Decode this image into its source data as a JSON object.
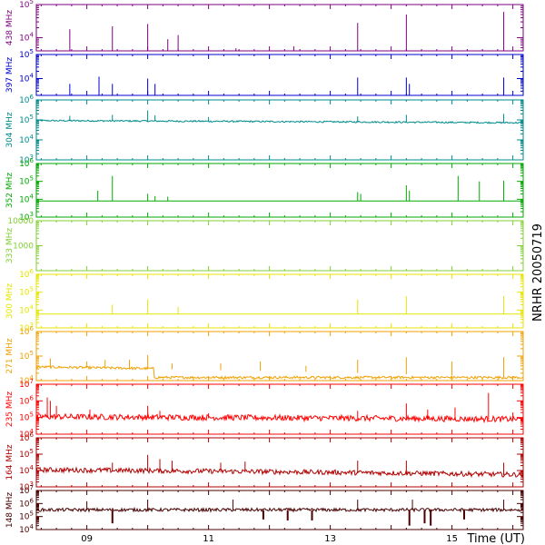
{
  "chart_data": {
    "type": "line",
    "side_label": "NRHR 20050719",
    "xlabel": "Time (UT)",
    "x_range": [
      8.17,
      16.17
    ],
    "x_ticks": [
      {
        "value": 9,
        "label": "09"
      },
      {
        "value": 11,
        "label": "11"
      },
      {
        "value": 13,
        "label": "13"
      },
      {
        "value": 15,
        "label": "15"
      }
    ],
    "panels": [
      {
        "name": "438 MHz",
        "color": "#7f007f",
        "ylim": [
          4000,
          100000
        ],
        "y_ticks": [
          {
            "value": 100000,
            "label": "10^5"
          },
          {
            "value": 10000,
            "label": "10^4"
          }
        ],
        "baseline": 4000,
        "noise": 0.0,
        "style": "flat",
        "spikes": [
          [
            8.72,
            18000
          ],
          [
            9.42,
            22000
          ],
          [
            10.0,
            26000
          ],
          [
            10.33,
            9000
          ],
          [
            10.5,
            12000
          ],
          [
            11.45,
            4800
          ],
          [
            12.4,
            5500
          ],
          [
            13.45,
            28000
          ],
          [
            14.25,
            50000
          ],
          [
            15.85,
            60000
          ]
        ]
      },
      {
        "name": "397 MHz",
        "color": "#0000cc",
        "ylim": [
          2000,
          100000
        ],
        "y_ticks": [
          {
            "value": 100000,
            "label": "10^5"
          },
          {
            "value": 10000,
            "label": "10^4"
          }
        ],
        "baseline": 2000,
        "noise": 0.0,
        "style": "flat",
        "spikes": [
          [
            8.72,
            6000
          ],
          [
            9.2,
            12000
          ],
          [
            9.42,
            6000
          ],
          [
            10.0,
            10000
          ],
          [
            10.12,
            6000
          ],
          [
            13.45,
            11000
          ],
          [
            14.25,
            11000
          ],
          [
            14.3,
            6000
          ],
          [
            15.85,
            11000
          ]
        ]
      },
      {
        "name": "304 MHz",
        "color": "#008b8b",
        "ylim": [
          1000,
          1000000
        ],
        "y_ticks": [
          {
            "value": 1000000,
            "label": "10^6"
          },
          {
            "value": 100000,
            "label": "10^5"
          },
          {
            "value": 10000,
            "label": "10^4"
          },
          {
            "value": 1000,
            "label": "10^3"
          }
        ],
        "baseline": 90000,
        "baseline_end": 70000,
        "noise": 0.08,
        "style": "noisy",
        "spikes": [
          [
            8.72,
            160000
          ],
          [
            9.42,
            180000
          ],
          [
            10.0,
            300000
          ],
          [
            10.12,
            170000
          ],
          [
            11.0,
            140000
          ],
          [
            13.45,
            150000
          ],
          [
            14.25,
            180000
          ],
          [
            15.85,
            200000
          ]
        ]
      },
      {
        "name": "352 MHz",
        "color": "#00aa00",
        "ylim": [
          1000,
          1000000
        ],
        "y_ticks": [
          {
            "value": 1000000,
            "label": "10^6"
          },
          {
            "value": 100000,
            "label": "10^5"
          },
          {
            "value": 10000,
            "label": "10^4"
          },
          {
            "value": 1000,
            "label": "10^3"
          }
        ],
        "baseline": 8000,
        "noise": 0.0,
        "style": "flat",
        "spikes": [
          [
            9.18,
            30000
          ],
          [
            9.42,
            200000
          ],
          [
            10.0,
            20000
          ],
          [
            10.12,
            15000
          ],
          [
            10.33,
            14000
          ],
          [
            13.45,
            25000
          ],
          [
            13.5,
            20000
          ],
          [
            14.25,
            60000
          ],
          [
            14.3,
            30000
          ],
          [
            15.1,
            200000
          ],
          [
            15.45,
            100000
          ],
          [
            15.85,
            110000
          ]
        ]
      },
      {
        "name": "333 MHz",
        "color": "#80d030",
        "ylim": [
          100,
          10000
        ],
        "y_ticks": [
          {
            "value": 10000,
            "label": "10000"
          },
          {
            "value": 1000,
            "label": "1000"
          }
        ],
        "baseline": 100,
        "noise": 0.0,
        "style": "flat",
        "spikes": []
      },
      {
        "name": "300 MHz",
        "color": "#e6e600",
        "ylim": [
          1000,
          1000000
        ],
        "y_ticks": [
          {
            "value": 1000000,
            "label": "10^6"
          },
          {
            "value": 100000,
            "label": "10^5"
          },
          {
            "value": 10000,
            "label": "10^4"
          },
          {
            "value": 1000,
            "label": "10^3"
          }
        ],
        "baseline": 6000,
        "noise": 0.0,
        "style": "flat",
        "spikes": [
          [
            9.42,
            20000
          ],
          [
            10.0,
            40000
          ],
          [
            10.5,
            15000
          ],
          [
            13.45,
            40000
          ],
          [
            14.25,
            60000
          ],
          [
            15.85,
            60000
          ]
        ]
      },
      {
        "name": "271 MHz",
        "color": "#f0a000",
        "ylim": [
          10000,
          1000000
        ],
        "y_ticks": [
          {
            "value": 1000000,
            "label": "10^6"
          },
          {
            "value": 100000,
            "label": "10^5"
          },
          {
            "value": 10000,
            "label": "10^4"
          }
        ],
        "baseline": 35000,
        "baseline_end": 13000,
        "step_at": 10.1,
        "noise": 0.1,
        "style": "noisy",
        "spikes": [
          [
            8.4,
            80000
          ],
          [
            9.0,
            60000
          ],
          [
            9.3,
            70000
          ],
          [
            9.7,
            70000
          ],
          [
            10.0,
            110000
          ],
          [
            10.4,
            50000
          ],
          [
            11.2,
            50000
          ],
          [
            11.85,
            60000
          ],
          [
            12.6,
            40000
          ],
          [
            13.45,
            70000
          ],
          [
            14.25,
            90000
          ],
          [
            15.0,
            60000
          ],
          [
            15.85,
            90000
          ]
        ]
      },
      {
        "name": "235 MHz",
        "color": "#ff0000",
        "ylim": [
          10000,
          10000000
        ],
        "y_ticks": [
          {
            "value": 10000000,
            "label": "10^7"
          },
          {
            "value": 1000000,
            "label": "10^6"
          },
          {
            "value": 100000,
            "label": "10^5"
          },
          {
            "value": 10000,
            "label": "10^4"
          }
        ],
        "baseline": 100000,
        "baseline_end": 70000,
        "noise": 0.35,
        "style": "noisy",
        "spikes": [
          [
            8.35,
            1600000
          ],
          [
            8.4,
            1000000
          ],
          [
            8.5,
            500000
          ],
          [
            9.05,
            300000
          ],
          [
            10.0,
            500000
          ],
          [
            10.2,
            250000
          ],
          [
            11.0,
            180000
          ],
          [
            13.45,
            250000
          ],
          [
            14.25,
            700000
          ],
          [
            14.6,
            300000
          ],
          [
            15.05,
            400000
          ],
          [
            15.6,
            3000000
          ],
          [
            16.0,
            200000
          ]
        ]
      },
      {
        "name": "164 MHz",
        "color": "#b00000",
        "ylim": [
          1000,
          1000000
        ],
        "y_ticks": [
          {
            "value": 1000000,
            "label": "10^6"
          },
          {
            "value": 100000,
            "label": "10^5"
          },
          {
            "value": 10000,
            "label": "10^4"
          },
          {
            "value": 1000,
            "label": "10^3"
          }
        ],
        "baseline": 10000,
        "baseline_end": 5000,
        "noise": 0.3,
        "style": "noisy",
        "spikes": [
          [
            9.42,
            30000
          ],
          [
            10.0,
            90000
          ],
          [
            10.2,
            50000
          ],
          [
            10.4,
            40000
          ],
          [
            11.2,
            30000
          ],
          [
            11.6,
            35000
          ],
          [
            13.45,
            40000
          ],
          [
            14.25,
            40000
          ],
          [
            15.85,
            30000
          ]
        ]
      },
      {
        "name": "148 MHz",
        "color": "#4a0000",
        "ylim": [
          10000,
          10000000
        ],
        "y_ticks": [
          {
            "value": 10000000,
            "label": "10^7"
          },
          {
            "value": 1000000,
            "label": "10^6"
          },
          {
            "value": 100000,
            "label": "10^5"
          },
          {
            "value": 10000,
            "label": "10^4"
          }
        ],
        "baseline": 300000,
        "noise": 0.25,
        "style": "noisy",
        "spikes": [
          [
            9.0,
            1500000
          ],
          [
            10.0,
            2000000
          ],
          [
            11.4,
            2000000
          ],
          [
            13.45,
            2000000
          ],
          [
            14.35,
            2000000
          ],
          [
            15.85,
            2000000
          ]
        ],
        "dips": [
          [
            9.42,
            30000
          ],
          [
            11.9,
            60000
          ],
          [
            12.3,
            50000
          ],
          [
            12.7,
            50000
          ],
          [
            14.3,
            20000
          ],
          [
            14.55,
            30000
          ],
          [
            14.65,
            20000
          ],
          [
            15.2,
            60000
          ]
        ]
      }
    ]
  }
}
